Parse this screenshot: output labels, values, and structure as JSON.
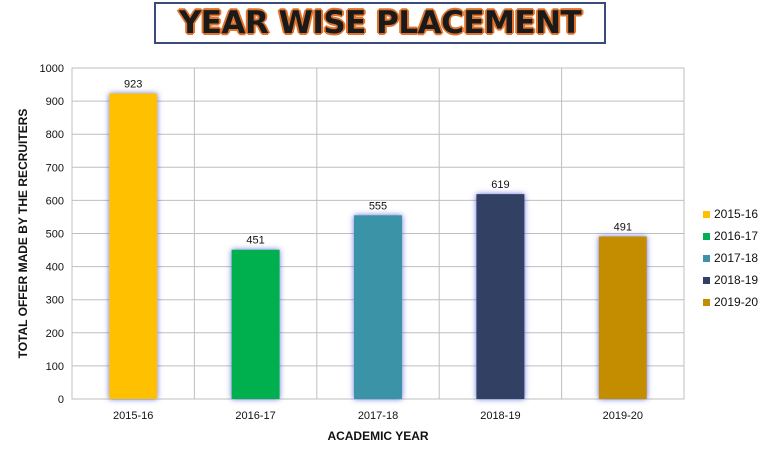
{
  "title": "YEAR WISE PLACEMENT",
  "chart_data": {
    "type": "bar",
    "categories": [
      "2015-16",
      "2016-17",
      "2017-18",
      "2018-19",
      "2019-20"
    ],
    "values": [
      923,
      451,
      555,
      619,
      491
    ],
    "colors": [
      "#ffc000",
      "#00b050",
      "#3a93a8",
      "#333f63",
      "#c48d00"
    ],
    "xlabel": "ACADEMIC YEAR",
    "ylabel": "TOTAL OFFER MADE BY THE RECRUITERS",
    "ylim": [
      0,
      1000
    ],
    "yticks": [
      0,
      100,
      200,
      300,
      400,
      500,
      600,
      700,
      800,
      900,
      1000
    ],
    "grid": true,
    "legend_position": "right"
  }
}
